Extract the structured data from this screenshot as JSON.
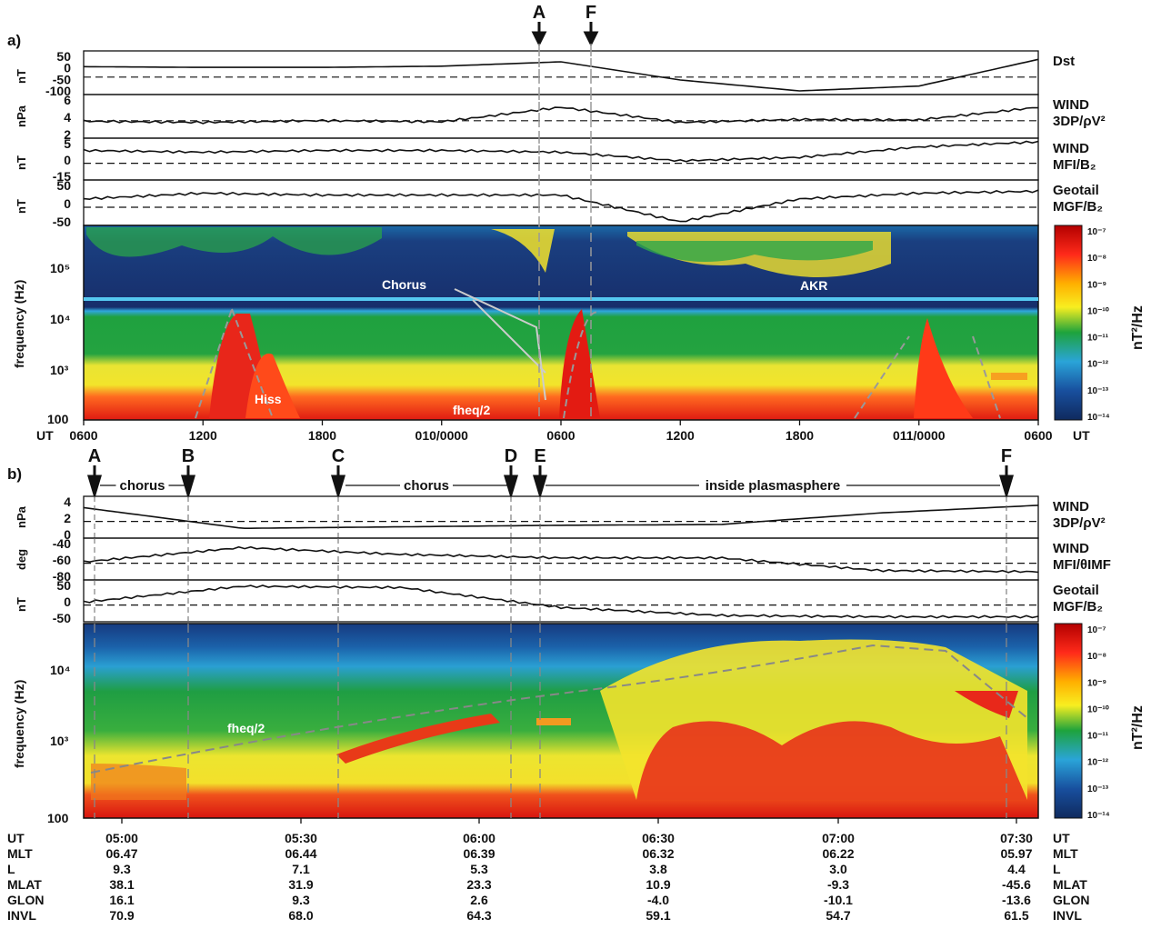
{
  "panel_a": {
    "label": "a)",
    "event_markers": [
      "A",
      "F"
    ],
    "rows": [
      {
        "unit": "nT",
        "ticks": [
          "50",
          "0",
          "-50",
          "-100"
        ],
        "label": [
          "Dst"
        ]
      },
      {
        "unit": "nPa",
        "ticks": [
          "6",
          "4",
          "2"
        ],
        "label": [
          "WIND",
          "3DP/ρV²"
        ]
      },
      {
        "unit": "nT",
        "ticks": [
          "5",
          "0",
          "-15"
        ],
        "label": [
          "WIND",
          "MFI/B₂"
        ]
      },
      {
        "unit": "nT",
        "ticks": [
          "50",
          "0",
          "-50"
        ],
        "label": [
          "Geotail",
          "MGF/B₂"
        ]
      }
    ],
    "spectrogram": {
      "ylabel": "frequency (Hz)",
      "yticks": [
        "10⁵",
        "10⁴",
        "10³",
        "100"
      ],
      "annotations": [
        "Chorus",
        "AKR",
        "Hiss",
        "fheq/2"
      ]
    },
    "xaxis": {
      "left_label": "UT",
      "ticks": [
        "0600",
        "1200",
        "1800",
        "010/0000",
        "0600",
        "1200",
        "1800",
        "011/0000",
        "0600"
      ],
      "right_label": "UT"
    },
    "colorbar": {
      "label": "nT²/Hz",
      "ticks": [
        "10⁻⁷",
        "10⁻⁸",
        "10⁻⁹",
        "10⁻¹⁰",
        "10⁻¹¹",
        "10⁻¹²",
        "10⁻¹³",
        "10⁻¹⁴"
      ]
    }
  },
  "panel_b": {
    "label": "b)",
    "event_markers": [
      "A",
      "B",
      "C",
      "D",
      "E",
      "F"
    ],
    "intervals": [
      "chorus",
      "chorus",
      "inside plasmasphere"
    ],
    "rows": [
      {
        "unit": "nPa",
        "ticks": [
          "4",
          "2",
          "0"
        ],
        "label": [
          "WIND",
          "3DP/ρV²"
        ]
      },
      {
        "unit": "deg",
        "ticks": [
          "-40",
          "-60",
          "-80"
        ],
        "label": [
          "WIND",
          "MFI/θIMF"
        ]
      },
      {
        "unit": "nT",
        "ticks": [
          "50",
          "0",
          "-50"
        ],
        "label": [
          "Geotail",
          "MGF/B₂"
        ]
      }
    ],
    "spectrogram": {
      "ylabel": "frequency (Hz)",
      "yticks": [
        "10⁴",
        "10³",
        "100"
      ],
      "annotations": [
        "fheq/2"
      ]
    },
    "colorbar": {
      "label": "nT²/Hz",
      "ticks": [
        "10⁻⁷",
        "10⁻⁸",
        "10⁻⁹",
        "10⁻¹⁰",
        "10⁻¹¹",
        "10⁻¹²",
        "10⁻¹³",
        "10⁻¹⁴"
      ]
    },
    "ephemeris": {
      "row_names": [
        "UT",
        "MLT",
        "L",
        "MLAT",
        "GLON",
        "INVL"
      ],
      "columns": [
        [
          "05:00",
          "06.47",
          "9.3",
          "38.1",
          "16.1",
          "70.9"
        ],
        [
          "05:30",
          "06.44",
          "7.1",
          "31.9",
          "9.3",
          "68.0"
        ],
        [
          "06:00",
          "06.39",
          "5.3",
          "23.3",
          "2.6",
          "64.3"
        ],
        [
          "06:30",
          "06.32",
          "3.8",
          "10.9",
          "-4.0",
          "59.1"
        ],
        [
          "07:00",
          "06.22",
          "3.0",
          "-9.3",
          "-10.1",
          "54.7"
        ],
        [
          "07:30",
          "05.97",
          "4.4",
          "-45.6",
          "-13.6",
          "61.5"
        ]
      ]
    }
  },
  "chart_data": [
    {
      "type": "line",
      "title": "",
      "series": [
        {
          "name": "Dst",
          "unit": "nT",
          "ylim": [
            -100,
            50
          ],
          "x": [
            0,
            6,
            12,
            18,
            24,
            30,
            36,
            42,
            48
          ],
          "values": [
            0,
            -3,
            -3,
            2,
            20,
            -55,
            -100,
            -80,
            30
          ]
        },
        {
          "name": "WIND 3DP/ρV²",
          "unit": "nPa",
          "ylim": [
            0,
            6
          ],
          "values": [
            2.2,
            2.0,
            2.3,
            2.1,
            4.5,
            2.0,
            2.5,
            2.4,
            4.5
          ]
        },
        {
          "name": "WIND MFI/Bz",
          "unit": "nT",
          "ylim": [
            -15,
            5
          ],
          "values": [
            0,
            -1,
            0,
            0,
            -1,
            -6,
            -4,
            2,
            5
          ]
        },
        {
          "name": "Geotail MGF/Bz",
          "unit": "nT",
          "ylim": [
            -50,
            50
          ],
          "values": [
            10,
            25,
            20,
            20,
            20,
            -50,
            10,
            25,
            30
          ]
        }
      ]
    },
    {
      "type": "heatmap",
      "ylabel": "frequency (Hz)",
      "ylim": [
        100,
        500000
      ],
      "colorbar_range": [
        1e-14,
        1e-07
      ],
      "annotations": [
        "Chorus",
        "AKR",
        "Hiss",
        "fheq/2"
      ]
    },
    {
      "type": "line",
      "series": [
        {
          "name": "WIND 3DP/ρV²",
          "unit": "nPa",
          "ylim": [
            0,
            4.5
          ],
          "values": [
            3.5,
            0.8,
            1.0,
            1.2,
            1.3,
            2.8,
            3.8
          ]
        },
        {
          "name": "WIND MFI/θIMF",
          "unit": "deg",
          "ylim": [
            -90,
            -30
          ],
          "values": [
            -65,
            -40,
            -52,
            -58,
            -58,
            -80,
            -82
          ]
        },
        {
          "name": "Geotail MGF/Bz",
          "unit": "nT",
          "ylim": [
            -60,
            70
          ],
          "values": [
            0,
            60,
            55,
            -20,
            -50,
            -55,
            -55
          ]
        }
      ]
    },
    {
      "type": "heatmap",
      "ylabel": "frequency (Hz)",
      "ylim": [
        100,
        40000
      ],
      "colorbar_range": [
        1e-14,
        1e-07
      ],
      "annotations": [
        "fheq/2"
      ]
    }
  ]
}
